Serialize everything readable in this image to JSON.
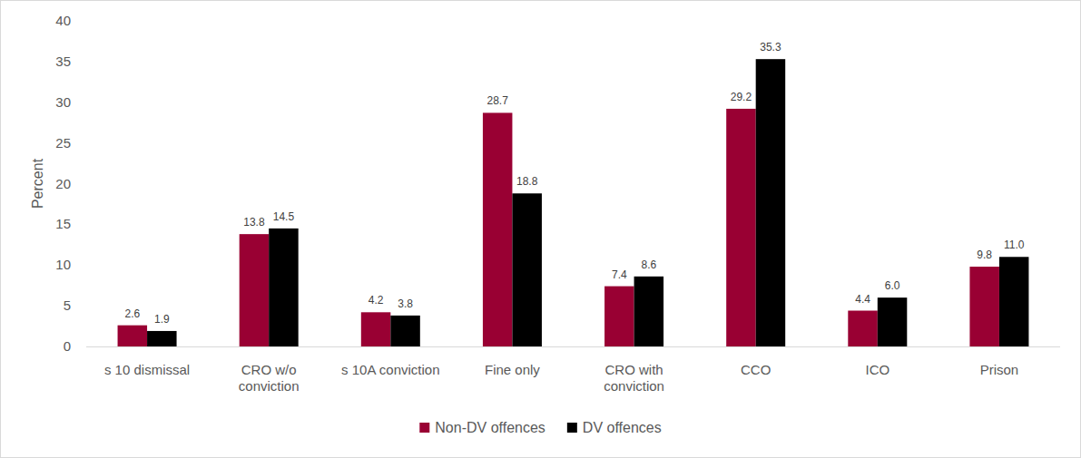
{
  "chart_data": {
    "type": "bar",
    "y_label": "Percent",
    "categories": [
      "s 10 dismissal",
      "CRO w/o conviction",
      "s 10A conviction",
      "Fine only",
      "CRO with conviction",
      "CCO",
      "ICO",
      "Prison"
    ],
    "series": [
      {
        "name": "Non-DV offences",
        "color": "#990033",
        "values": [
          2.6,
          13.8,
          4.2,
          28.7,
          7.4,
          29.2,
          4.4,
          9.8
        ],
        "value_labels": [
          "2.6",
          "13.8",
          "4.2",
          "28.7",
          "7.4",
          "29.2",
          "4.4",
          "9.8"
        ]
      },
      {
        "name": "DV offences",
        "color": "#000000",
        "values": [
          1.9,
          14.5,
          3.8,
          18.8,
          8.6,
          35.3,
          6.0,
          11.0
        ],
        "value_labels": [
          "1.9",
          "14.5",
          "3.8",
          "18.8",
          "8.6",
          "35.3",
          "6.0",
          "11.0"
        ]
      }
    ],
    "ylim": [
      0,
      40
    ],
    "yticks": [
      0,
      5,
      10,
      15,
      20,
      25,
      30,
      35,
      40
    ],
    "grid": false,
    "legend": "bottom",
    "data_labels": true
  }
}
